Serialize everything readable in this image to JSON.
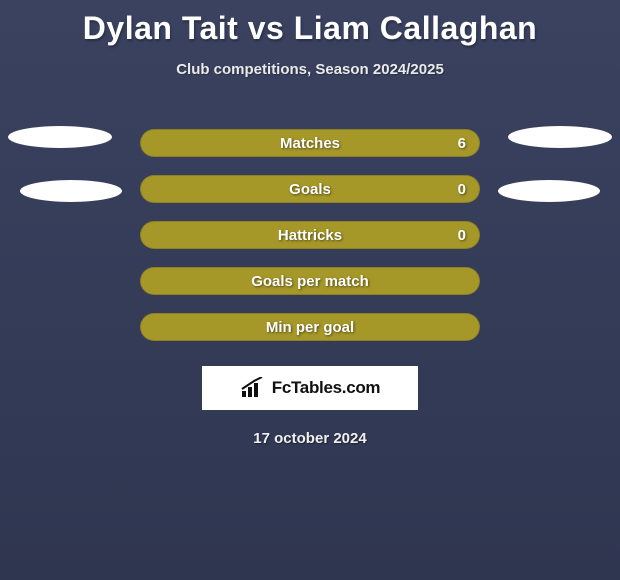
{
  "title": "Dylan Tait vs Liam Callaghan",
  "subtitle": "Club competitions, Season 2024/2025",
  "brand": "FcTables.com",
  "date": "17 october 2024",
  "colors": {
    "bar_fill": "#a69729",
    "bar_accent": "#b3a42e",
    "bg_top": "#3a4260",
    "bg_bottom": "#2f3650",
    "white": "#ffffff"
  },
  "rows": [
    {
      "label": "Matches",
      "value": "6",
      "show_value": true
    },
    {
      "label": "Goals",
      "value": "0",
      "show_value": true
    },
    {
      "label": "Hattricks",
      "value": "0",
      "show_value": true
    },
    {
      "label": "Goals per match",
      "value": "",
      "show_value": false
    },
    {
      "label": "Min per goal",
      "value": "",
      "show_value": false
    }
  ]
}
